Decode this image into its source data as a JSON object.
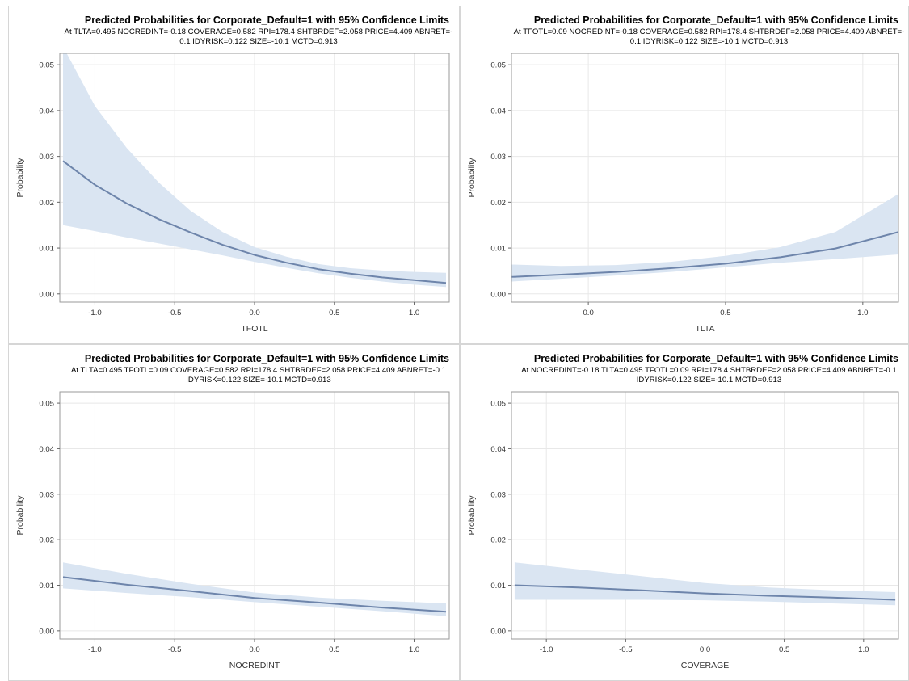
{
  "chart_data": [
    {
      "type": "line",
      "title": "Predicted Probabilities for Corporate_Default=1 with 95% Confidence Limits",
      "subtitle_lines": [
        "At TLTA=0.495 NOCREDINT=-0.18 COVERAGE=0.582 RPI=178.4 SHTBRDEF=2.058 PRICE=4.409 ABNRET=-",
        "0.1 IDYRISK=0.122 SIZE=-10.1 MCTD=0.913"
      ],
      "xlabel": "TFOTL",
      "ylabel": "Probability",
      "xlim": [
        -1.22,
        1.22
      ],
      "ylim": [
        -0.0018,
        0.0525
      ],
      "x_ticks": [
        "-1.0",
        "-0.5",
        "0.0",
        "0.5",
        "1.0"
      ],
      "y_ticks": [
        "0.00",
        "0.01",
        "0.02",
        "0.03",
        "0.04",
        "0.05"
      ],
      "grid": true,
      "band_color": "#dae5f2",
      "line_color": "#6e85ab",
      "x": [
        -1.2,
        -1.0,
        -0.8,
        -0.6,
        -0.4,
        -0.2,
        0.0,
        0.2,
        0.4,
        0.6,
        0.8,
        1.0,
        1.2
      ],
      "series": [
        {
          "values": [
            0.029,
            0.0238,
            0.0197,
            0.0163,
            0.0134,
            0.0107,
            0.0085,
            0.0068,
            0.0054,
            0.0044,
            0.0036,
            0.003,
            0.0024
          ]
        },
        {
          "values": [
            0.015,
            0.0137,
            0.0123,
            0.011,
            0.0097,
            0.0084,
            0.007,
            0.0057,
            0.0045,
            0.0035,
            0.0027,
            0.002,
            0.0015
          ]
        },
        {
          "values": [
            0.054,
            0.041,
            0.0318,
            0.0243,
            0.0181,
            0.0135,
            0.0102,
            0.0081,
            0.0065,
            0.0056,
            0.0051,
            0.0048,
            0.0046
          ]
        }
      ]
    },
    {
      "type": "line",
      "title": "Predicted Probabilities for Corporate_Default=1 with 95% Confidence Limits",
      "subtitle_lines": [
        "At TFOTL=0.09 NOCREDINT=-0.18 COVERAGE=0.582 RPI=178.4 SHTBRDEF=2.058 PRICE=4.409 ABNRET=-",
        "0.1 IDYRISK=0.122 SIZE=-10.1 MCTD=0.913"
      ],
      "xlabel": "TLTA",
      "ylabel": "Probability",
      "xlim": [
        -0.28,
        1.13
      ],
      "ylim": [
        -0.0018,
        0.0525
      ],
      "x_ticks": [
        "0.0",
        "0.5",
        "1.0"
      ],
      "y_ticks": [
        "0.00",
        "0.01",
        "0.02",
        "0.03",
        "0.04",
        "0.05"
      ],
      "grid": true,
      "band_color": "#dae5f2",
      "line_color": "#6e85ab",
      "x": [
        -0.28,
        -0.1,
        0.1,
        0.3,
        0.5,
        0.7,
        0.9,
        1.13
      ],
      "series": [
        {
          "values": [
            0.0037,
            0.0042,
            0.0048,
            0.0056,
            0.0066,
            0.008,
            0.0099,
            0.0135
          ]
        },
        {
          "values": [
            0.0027,
            0.0033,
            0.004,
            0.0048,
            0.0058,
            0.0068,
            0.0076,
            0.0086
          ]
        },
        {
          "values": [
            0.0064,
            0.0061,
            0.0063,
            0.007,
            0.0083,
            0.0102,
            0.0135,
            0.0218
          ]
        }
      ]
    },
    {
      "type": "line",
      "title": "Predicted Probabilities for Corporate_Default=1 with 95% Confidence Limits",
      "subtitle_lines": [
        "At TLTA=0.495 TFOTL=0.09 COVERAGE=0.582 RPI=178.4 SHTBRDEF=2.058 PRICE=4.409 ABNRET=-0.1",
        "IDYRISK=0.122 SIZE=-10.1 MCTD=0.913"
      ],
      "xlabel": "NOCREDINT",
      "ylabel": "Probability",
      "xlim": [
        -1.22,
        1.22
      ],
      "ylim": [
        -0.0018,
        0.0525
      ],
      "x_ticks": [
        "-1.0",
        "-0.5",
        "0.0",
        "0.5",
        "1.0"
      ],
      "y_ticks": [
        "0.00",
        "0.01",
        "0.02",
        "0.03",
        "0.04",
        "0.05"
      ],
      "grid": true,
      "band_color": "#dae5f2",
      "line_color": "#6e85ab",
      "x": [
        -1.2,
        -0.8,
        -0.4,
        0.0,
        0.4,
        0.8,
        1.2
      ],
      "series": [
        {
          "values": [
            0.0118,
            0.0101,
            0.0087,
            0.0072,
            0.0062,
            0.0051,
            0.0042
          ]
        },
        {
          "values": [
            0.0093,
            0.0083,
            0.0074,
            0.0063,
            0.0053,
            0.0043,
            0.0032
          ]
        },
        {
          "values": [
            0.015,
            0.0125,
            0.0103,
            0.0084,
            0.0073,
            0.0066,
            0.006
          ]
        }
      ]
    },
    {
      "type": "line",
      "title": "Predicted Probabilities for Corporate_Default=1 with 95% Confidence Limits",
      "subtitle_lines": [
        "At NOCREDINT=-0.18 TLTA=0.495 TFOTL=0.09 RPI=178.4 SHTBRDEF=2.058 PRICE=4.409 ABNRET=-0.1",
        "IDYRISK=0.122 SIZE=-10.1 MCTD=0.913"
      ],
      "xlabel": "COVERAGE",
      "ylabel": "Probability",
      "xlim": [
        -1.22,
        1.22
      ],
      "ylim": [
        -0.0018,
        0.0525
      ],
      "x_ticks": [
        "-1.0",
        "-0.5",
        "0.0",
        "0.5",
        "1.0"
      ],
      "y_ticks": [
        "0.00",
        "0.01",
        "0.02",
        "0.03",
        "0.04",
        "0.05"
      ],
      "grid": true,
      "band_color": "#dae5f2",
      "line_color": "#6e85ab",
      "x": [
        -1.2,
        -0.8,
        -0.4,
        0.0,
        0.4,
        0.8,
        1.2
      ],
      "series": [
        {
          "values": [
            0.01,
            0.0095,
            0.0089,
            0.0082,
            0.0077,
            0.0073,
            0.0068
          ]
        },
        {
          "values": [
            0.0068,
            0.0068,
            0.0068,
            0.0067,
            0.0064,
            0.006,
            0.0056
          ]
        },
        {
          "values": [
            0.015,
            0.0135,
            0.012,
            0.0105,
            0.0095,
            0.0089,
            0.0085
          ]
        }
      ]
    }
  ]
}
